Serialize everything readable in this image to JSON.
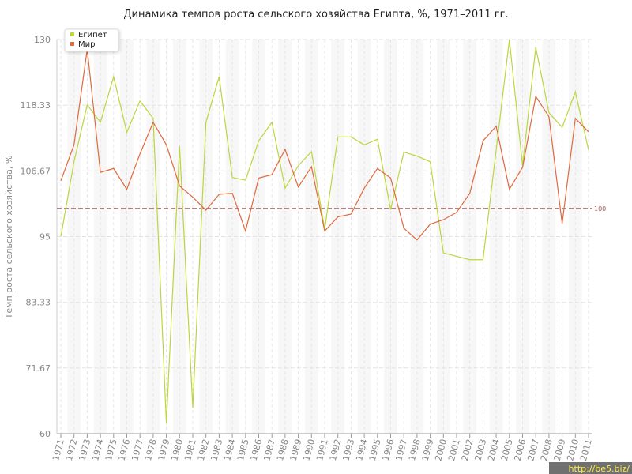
{
  "chart_data": {
    "type": "line",
    "title": "Динамика темпов роста сельского хозяйства Египта, %, 1971–2011 гг.",
    "y_label": "Темп роста сельского хозяйства, %",
    "categories": [
      "1971",
      "1972",
      "1973",
      "1974",
      "1975",
      "1976",
      "1977",
      "1978",
      "1979",
      "1980",
      "1981",
      "1982",
      "1983",
      "1984",
      "1985",
      "1986",
      "1987",
      "1988",
      "1989",
      "1990",
      "1991",
      "1992",
      "1993",
      "1994",
      "1995",
      "1996",
      "1997",
      "1998",
      "1999",
      "2000",
      "2001",
      "2002",
      "2003",
      "2004",
      "2005",
      "2006",
      "2007",
      "2008",
      "2009",
      "2010",
      "2011"
    ],
    "series": [
      {
        "name": "Египет",
        "color": "#bcd63c",
        "values": [
          95,
          108.3,
          118.4,
          115.3,
          123.4,
          113.5,
          119.1,
          116,
          61.8,
          111.1,
          64.6,
          115.3,
          123.4,
          105.5,
          105,
          112,
          115.3,
          103.6,
          107.6,
          110.1,
          96.3,
          112.7,
          112.7,
          111.3,
          112.3,
          99.8,
          110,
          109.3,
          108.3,
          92.1,
          91.5,
          90.9,
          90.9,
          110.4,
          130,
          107.6,
          128.6,
          117,
          114.4,
          120.7,
          110.4
        ]
      },
      {
        "name": "Мир",
        "color": "#e0693e",
        "values": [
          104.9,
          111.3,
          128.3,
          106.4,
          107.1,
          103.4,
          109.7,
          115.3,
          111.3,
          104,
          102,
          99.7,
          102.5,
          102.7,
          96,
          105.4,
          106,
          110.5,
          103.8,
          107.4,
          96,
          98.5,
          99,
          103.6,
          107.1,
          105.4,
          96.5,
          94.4,
          97.2,
          98,
          99.3,
          102.7,
          112,
          114.6,
          103.4,
          107.3,
          119.9,
          116.3,
          97.3,
          116,
          113.6
        ]
      }
    ],
    "ylim": [
      60,
      130
    ],
    "yticks": [
      60,
      71.67,
      83.33,
      95,
      106.67,
      118.33,
      130
    ],
    "reference_line": 100,
    "reference_color": "#a05a5a",
    "grid": true,
    "legend_position": "top-left",
    "watermark": "http://be5.biz/"
  }
}
